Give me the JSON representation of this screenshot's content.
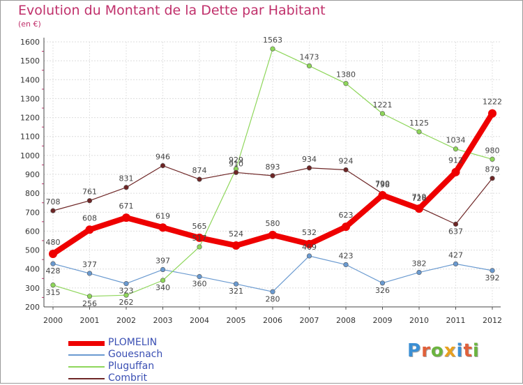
{
  "title": "Evolution du Montant de la Dette par Habitant",
  "subtitle": "(en €)",
  "logo": {
    "text": "Proxiti",
    "letters": [
      "P",
      "r",
      "o",
      "x",
      "i",
      "t",
      "i"
    ],
    "colors": [
      "#3b8fd4",
      "#e0603a",
      "#6bb43f",
      "#e8a020",
      "#3b8fd4",
      "#e0603a",
      "#6bb43f"
    ]
  },
  "chart_data": {
    "type": "line",
    "title": "Evolution du Montant de la Dette par Habitant",
    "subtitle": "(en €)",
    "xlabel": "",
    "ylabel": "",
    "x": [
      "2000",
      "2001",
      "2002",
      "2003",
      "2004",
      "2005",
      "2006",
      "2007",
      "2008",
      "2009",
      "2010",
      "2011",
      "2012"
    ],
    "ylim": [
      200,
      1600
    ],
    "yticks": [
      200,
      300,
      400,
      500,
      600,
      700,
      800,
      900,
      1000,
      1100,
      1200,
      1300,
      1400,
      1500,
      1600
    ],
    "grid": true,
    "legend_position": "bottom-left",
    "series": [
      {
        "name": "Gouesnach",
        "color": "#6a9ad0",
        "values": [
          428,
          377,
          323,
          397,
          360,
          321,
          280,
          469,
          423,
          326,
          382,
          427,
          392
        ]
      },
      {
        "name": "Pluguffan",
        "color": "#8ed65a",
        "values": [
          315,
          256,
          262,
          340,
          517,
          929,
          1563,
          1473,
          1380,
          1221,
          1125,
          1034,
          980
        ]
      },
      {
        "name": "Combrit",
        "color": "#6e2626",
        "values": [
          708,
          761,
          831,
          946,
          874,
          910,
          893,
          934,
          924,
          798,
          726,
          637,
          879
        ]
      },
      {
        "name": "PLOMELIN",
        "color": "#ee0000",
        "values": [
          480,
          608,
          671,
          619,
          565,
          524,
          580,
          532,
          623,
          790,
          719,
          912,
          1222
        ]
      }
    ],
    "legend": [
      "PLOMELIN",
      "Gouesnach",
      "Pluguffan",
      "Combrit"
    ]
  }
}
